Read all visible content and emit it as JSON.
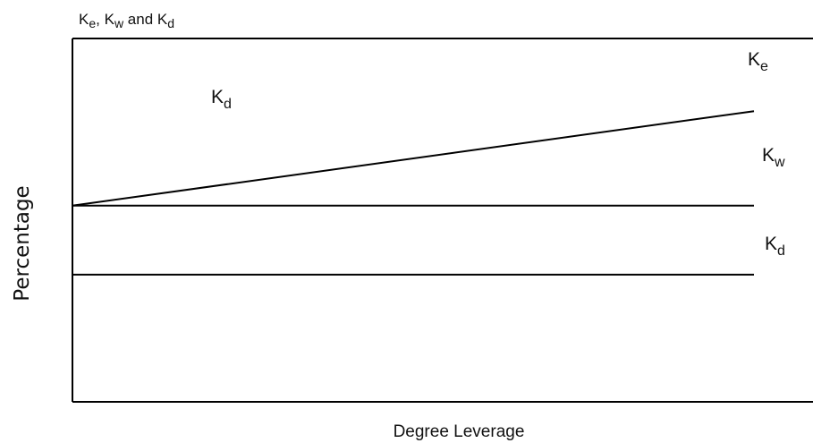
{
  "chart_data": {
    "type": "line",
    "title": "Ke, Kw and Kd",
    "xlabel": "Degree Leverage",
    "ylabel": "Percentage",
    "grid": false,
    "series": [
      {
        "name": "Ke",
        "x": [
          0,
          1
        ],
        "values": [
          0.54,
          0.8
        ]
      },
      {
        "name": "Kw",
        "x": [
          0,
          1
        ],
        "values": [
          0.54,
          0.54
        ]
      },
      {
        "name": "Kd",
        "x": [
          0,
          1
        ],
        "values": [
          0.35,
          0.35
        ]
      }
    ],
    "annotations": [
      {
        "text": "Kd",
        "x": 0.23,
        "y": 0.68
      }
    ]
  },
  "title_parts": [
    {
      "text": "K",
      "sub": "e"
    },
    {
      "text": ", K",
      "sub": "w"
    },
    {
      "text": " and  K",
      "sub": "d"
    }
  ],
  "series_labels": [
    {
      "main": "K",
      "sub": "e"
    },
    {
      "main": "K",
      "sub": "w"
    },
    {
      "main": "K",
      "sub": "d"
    }
  ],
  "annotation_label": {
    "main": "K",
    "sub": "d"
  },
  "colors": {
    "line": "#000000",
    "frame": "#000000",
    "text": "#111111"
  }
}
